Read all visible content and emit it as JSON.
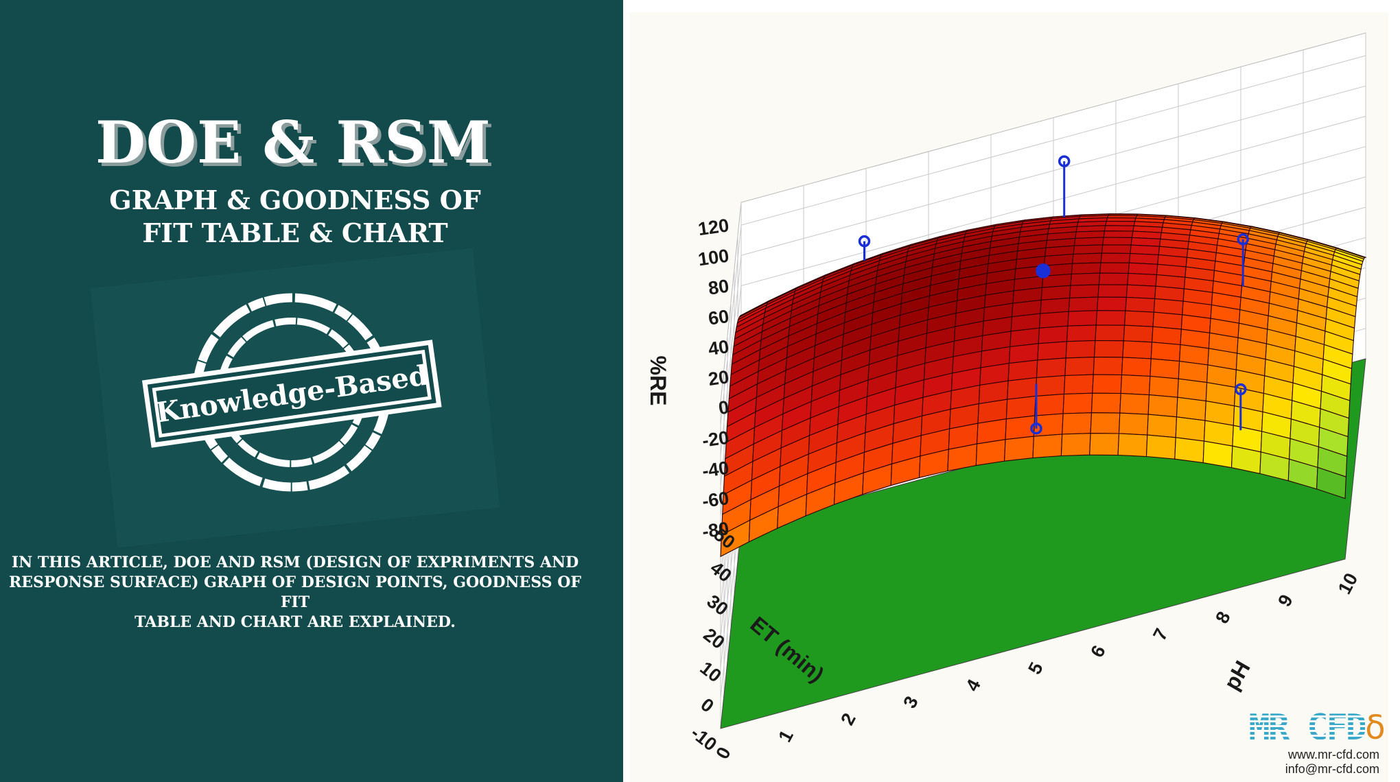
{
  "left_panel": {
    "title": "DOE & RSM",
    "subtitle_lines": [
      "GRAPH & GOODNESS OF",
      "FIT TABLE & CHART"
    ],
    "stamp_text": "Knowledge-Based",
    "description_lines": [
      "IN THIS ARTICLE, DOE AND RSM (DESIGN OF EXPRIMENTS AND",
      "RESPONSE SURFACE) GRAPH OF DESIGN POINTS, GOODNESS OF FIT",
      "TABLE AND CHART ARE EXPLAINED."
    ],
    "background_color": "#134a4b"
  },
  "chart_data": {
    "type": "surface",
    "zlabel": "%RE",
    "xlabel": "pH",
    "ylabel": "ET (min)",
    "zlim": [
      -80,
      120
    ],
    "z_ticks": [
      "120",
      "100",
      "80",
      "60",
      "40",
      "20",
      "0",
      "-20",
      "-40",
      "-60",
      "-80"
    ],
    "xlim": [
      0,
      10
    ],
    "x_ticks": [
      "0",
      "1",
      "2",
      "3",
      "4",
      "5",
      "6",
      "7",
      "8",
      "9",
      "10"
    ],
    "ylim": [
      -10,
      50
    ],
    "y_ticks": [
      "50",
      "40",
      "30",
      "20",
      "10",
      "0",
      "-10"
    ],
    "surface_extremes": {
      "max_RE": 105,
      "min_RE": -40
    },
    "colormap": [
      "#8b0000",
      "#d21010",
      "#ff4a00",
      "#ff9900",
      "#ffe600",
      "#a6e22a",
      "#22a322"
    ],
    "design_points": [
      {
        "pH": 2.0,
        "ET": 45,
        "RE": 98
      },
      {
        "pH": 5.2,
        "ET": 45,
        "RE": 115
      },
      {
        "pH": 5.0,
        "ET": 20,
        "RE": 100
      },
      {
        "pH": 8.2,
        "ET": 20,
        "RE": 85
      },
      {
        "pH": 5.0,
        "ET": 0,
        "RE": 40
      },
      {
        "pH": 8.3,
        "ET": -5,
        "RE": 40
      }
    ],
    "grid": true
  },
  "logo": {
    "mark": "MR CFD",
    "website": "www.mr-cfd.com",
    "email": "info@mr-cfd.com"
  }
}
